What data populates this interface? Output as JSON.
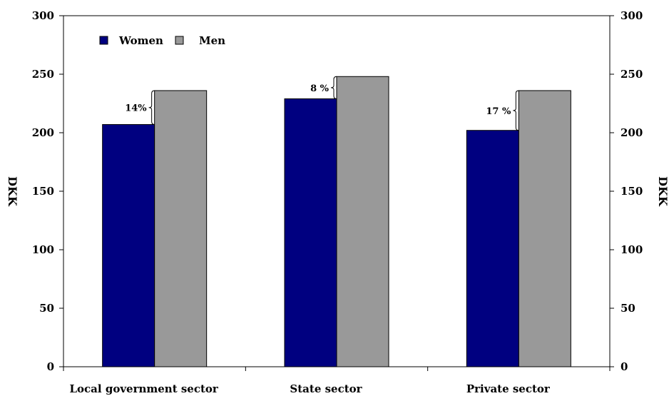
{
  "chart_data": {
    "type": "bar",
    "categories": [
      "Local government sector",
      "State sector",
      "Private sector"
    ],
    "series": [
      {
        "name": "Women",
        "values": [
          207,
          229,
          202
        ],
        "color": "#000080"
      },
      {
        "name": "Men",
        "values": [
          236,
          248,
          236
        ],
        "color": "#999999"
      }
    ],
    "ylabel_left": "DKK",
    "ylabel_right": "DKK",
    "ylim": [
      0,
      300
    ],
    "yticks": [
      "0",
      "50",
      "100",
      "150",
      "200",
      "250",
      "300"
    ],
    "grid": false,
    "legend": {
      "placement": "top-left",
      "items": [
        "Women",
        "Men"
      ]
    },
    "annotations": [
      "14%",
      "8 %",
      "17 %"
    ]
  }
}
